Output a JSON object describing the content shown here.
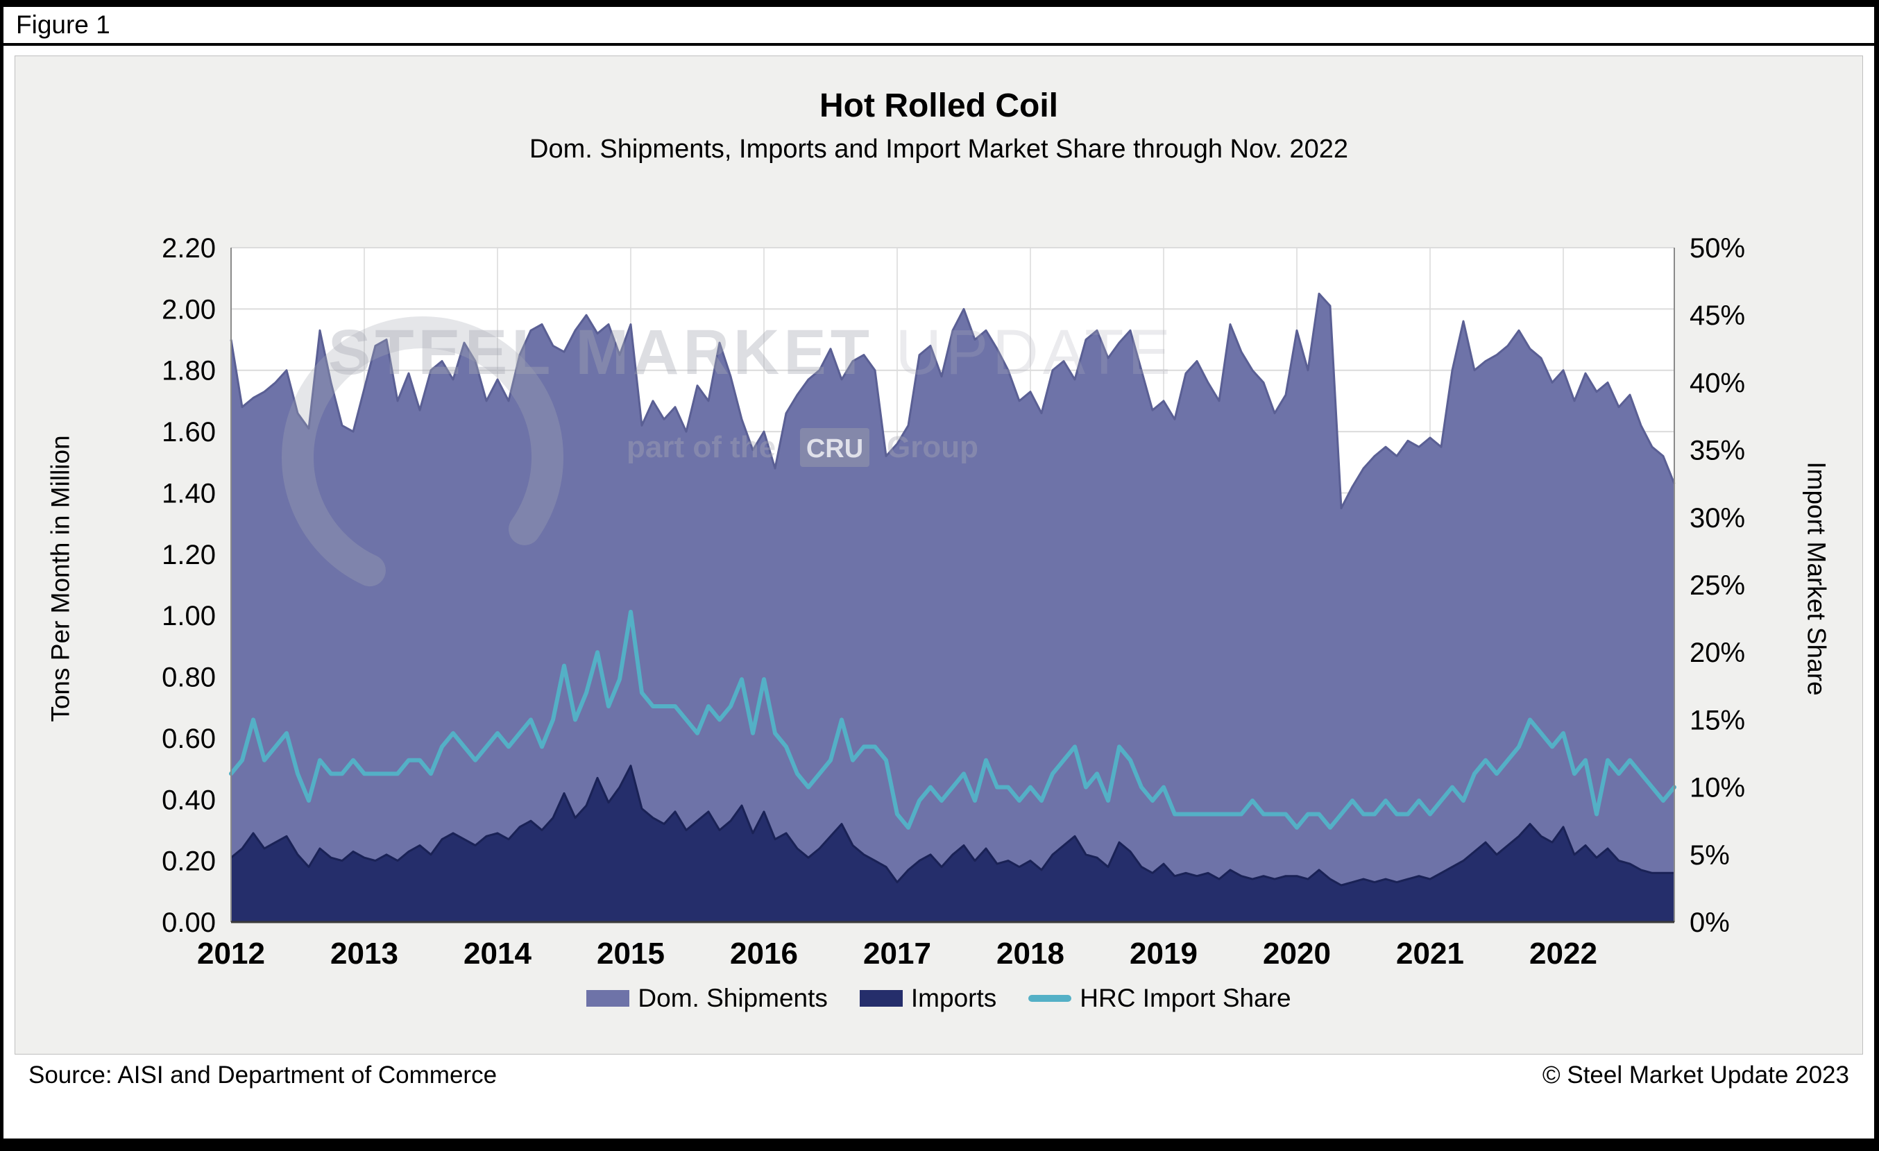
{
  "figure_label": "Figure 1",
  "title": "Hot Rolled Coil",
  "subtitle": "Dom. Shipments, Imports and Import Market Share through Nov. 2022",
  "footer": {
    "source": "Source: AISI and Department of Commerce",
    "copyright": "© Steel Market Update 2023"
  },
  "watermark": {
    "brand_bold": "STEEL MARKET",
    "brand_light": " UPDATE",
    "tagline_prefix": "part of the",
    "tagline_box": "CRU",
    "tagline_suffix": "Group"
  },
  "chart_data": {
    "type": "area",
    "x_start": "2012-01",
    "x_end": "2022-11",
    "frequency": "monthly",
    "x_tick_labels": [
      "2012",
      "2013",
      "2014",
      "2015",
      "2016",
      "2017",
      "2018",
      "2019",
      "2020",
      "2021",
      "2022"
    ],
    "ylabel_left": "Tons Per Month in Million",
    "ylabel_right": "Import Market Share",
    "ylim_left": [
      0,
      2.2
    ],
    "ylim_right_percent": [
      0,
      50
    ],
    "left_tick_labels": [
      "0.00",
      "0.20",
      "0.40",
      "0.60",
      "0.80",
      "1.00",
      "1.20",
      "1.40",
      "1.60",
      "1.80",
      "2.00",
      "2.20"
    ],
    "right_tick_labels": [
      "0%",
      "5%",
      "10%",
      "15%",
      "20%",
      "25%",
      "30%",
      "35%",
      "40%",
      "45%",
      "50%"
    ],
    "grid": true,
    "legend_position": "bottom",
    "series": [
      {
        "name": "Dom. Shipments",
        "type": "area",
        "axis": "left",
        "color": "#6e73a8",
        "edge_color": "#5a5f94",
        "values": [
          1.9,
          1.68,
          1.71,
          1.73,
          1.76,
          1.8,
          1.66,
          1.61,
          1.93,
          1.76,
          1.62,
          1.6,
          1.74,
          1.88,
          1.9,
          1.7,
          1.79,
          1.67,
          1.8,
          1.83,
          1.77,
          1.89,
          1.83,
          1.7,
          1.77,
          1.7,
          1.85,
          1.93,
          1.95,
          1.88,
          1.86,
          1.93,
          1.98,
          1.92,
          1.95,
          1.85,
          1.95,
          1.62,
          1.7,
          1.64,
          1.68,
          1.6,
          1.75,
          1.7,
          1.89,
          1.78,
          1.64,
          1.54,
          1.6,
          1.48,
          1.66,
          1.72,
          1.77,
          1.8,
          1.87,
          1.77,
          1.83,
          1.85,
          1.8,
          1.52,
          1.56,
          1.62,
          1.85,
          1.88,
          1.78,
          1.93,
          2.0,
          1.9,
          1.93,
          1.87,
          1.8,
          1.7,
          1.73,
          1.66,
          1.8,
          1.83,
          1.77,
          1.9,
          1.93,
          1.84,
          1.89,
          1.93,
          1.8,
          1.67,
          1.7,
          1.64,
          1.79,
          1.83,
          1.76,
          1.7,
          1.95,
          1.86,
          1.8,
          1.76,
          1.66,
          1.72,
          1.93,
          1.8,
          2.05,
          2.01,
          1.35,
          1.42,
          1.48,
          1.52,
          1.55,
          1.52,
          1.57,
          1.55,
          1.58,
          1.55,
          1.8,
          1.96,
          1.8,
          1.83,
          1.85,
          1.88,
          1.93,
          1.87,
          1.84,
          1.76,
          1.8,
          1.7,
          1.79,
          1.73,
          1.76,
          1.68,
          1.72,
          1.62,
          1.55,
          1.52,
          1.43
        ]
      },
      {
        "name": "Imports",
        "type": "area",
        "axis": "left",
        "color": "#252e6b",
        "edge_color": "#1a2256",
        "values": [
          0.21,
          0.24,
          0.29,
          0.24,
          0.26,
          0.28,
          0.22,
          0.18,
          0.24,
          0.21,
          0.2,
          0.23,
          0.21,
          0.2,
          0.22,
          0.2,
          0.23,
          0.25,
          0.22,
          0.27,
          0.29,
          0.27,
          0.25,
          0.28,
          0.29,
          0.27,
          0.31,
          0.33,
          0.3,
          0.34,
          0.42,
          0.34,
          0.38,
          0.47,
          0.39,
          0.44,
          0.51,
          0.37,
          0.34,
          0.32,
          0.36,
          0.3,
          0.33,
          0.36,
          0.3,
          0.33,
          0.38,
          0.29,
          0.36,
          0.27,
          0.29,
          0.24,
          0.21,
          0.24,
          0.28,
          0.32,
          0.25,
          0.22,
          0.2,
          0.18,
          0.13,
          0.17,
          0.2,
          0.22,
          0.18,
          0.22,
          0.25,
          0.2,
          0.24,
          0.19,
          0.2,
          0.18,
          0.2,
          0.17,
          0.22,
          0.25,
          0.28,
          0.22,
          0.21,
          0.18,
          0.26,
          0.23,
          0.18,
          0.16,
          0.19,
          0.15,
          0.16,
          0.15,
          0.16,
          0.14,
          0.17,
          0.15,
          0.14,
          0.15,
          0.14,
          0.15,
          0.15,
          0.14,
          0.17,
          0.14,
          0.12,
          0.13,
          0.14,
          0.13,
          0.14,
          0.13,
          0.14,
          0.15,
          0.14,
          0.16,
          0.18,
          0.2,
          0.23,
          0.26,
          0.22,
          0.25,
          0.28,
          0.32,
          0.28,
          0.26,
          0.31,
          0.22,
          0.25,
          0.21,
          0.24,
          0.2,
          0.19,
          0.17,
          0.16,
          0.16,
          0.16
        ]
      },
      {
        "name": "HRC Import Share",
        "type": "line",
        "axis": "right",
        "unit": "%",
        "color": "#54b0c6",
        "values": [
          11,
          12,
          15,
          12,
          13,
          14,
          11,
          9,
          12,
          11,
          11,
          12,
          11,
          11,
          11,
          11,
          12,
          12,
          11,
          13,
          14,
          13,
          12,
          13,
          14,
          13,
          14,
          15,
          13,
          15,
          19,
          15,
          17,
          20,
          16,
          18,
          23,
          17,
          16,
          16,
          16,
          15,
          14,
          16,
          15,
          16,
          18,
          14,
          18,
          14,
          13,
          11,
          10,
          11,
          12,
          15,
          12,
          13,
          13,
          12,
          8,
          7,
          9,
          10,
          9,
          10,
          11,
          9,
          12,
          10,
          10,
          9,
          10,
          9,
          11,
          12,
          13,
          10,
          11,
          9,
          13,
          12,
          10,
          9,
          10,
          8,
          8,
          8,
          8,
          8,
          8,
          8,
          9,
          8,
          8,
          8,
          7,
          8,
          8,
          7,
          8,
          9,
          8,
          8,
          9,
          8,
          8,
          9,
          8,
          9,
          10,
          9,
          11,
          12,
          11,
          12,
          13,
          15,
          14,
          13,
          14,
          11,
          12,
          8,
          12,
          11,
          12,
          11,
          10,
          9,
          10
        ]
      }
    ]
  }
}
